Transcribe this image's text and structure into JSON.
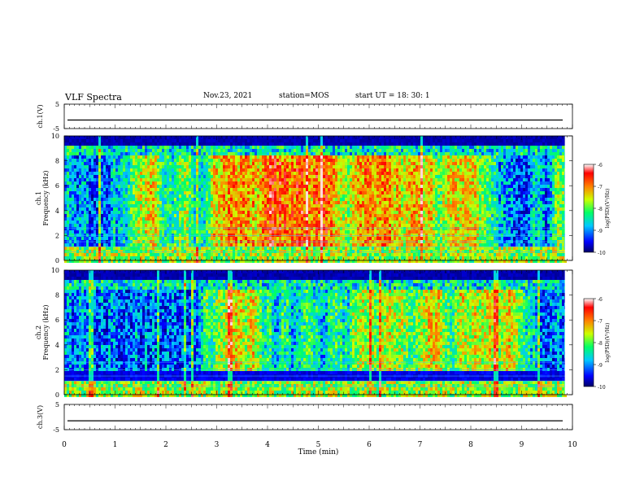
{
  "header": {
    "title": "VLF Spectra",
    "date": "Nov.23, 2021",
    "station": "station=MOS",
    "start": "start  UT  =   18: 30: 1"
  },
  "chart_data": [
    {
      "type": "line",
      "name": "ch1-waveform",
      "ylabel": "ch.1(V)",
      "ylim": [
        -5,
        5
      ],
      "yticks": [
        "5",
        "-5"
      ],
      "xlim": [
        0,
        10
      ],
      "level": -1.5
    },
    {
      "type": "heatmap",
      "name": "ch1-spectrogram",
      "ylabel": [
        "ch.1",
        "Frequency (kHz)"
      ],
      "ylim": [
        0,
        10
      ],
      "yticks": [
        "0",
        "2",
        "4",
        "6",
        "8",
        "10"
      ],
      "xlim": [
        0,
        10
      ],
      "data_end_min": 9.85,
      "colorbar": {
        "label": "log(PSD)(V²/Hz)",
        "range": [
          -10,
          -6
        ],
        "ticks": [
          "-6",
          "-7",
          "-8",
          "-9",
          "-10"
        ],
        "colormap": [
          "#000066",
          "#0000ff",
          "#00c8ff",
          "#00ff66",
          "#ccff00",
          "#ff8000",
          "#ff0000",
          "#ffffff"
        ]
      }
    },
    {
      "type": "heatmap",
      "name": "ch2-spectrogram",
      "ylabel": [
        "ch.2",
        "Frequency (kHz)"
      ],
      "ylim": [
        0,
        10
      ],
      "yticks": [
        "0",
        "2",
        "4",
        "6",
        "8",
        "10"
      ],
      "xlim": [
        0,
        10
      ],
      "data_end_min": 9.85,
      "colorbar": {
        "label": "log(PSD)(V²/Hz)",
        "range": [
          -10,
          -6
        ],
        "ticks": [
          "-6",
          "-7",
          "-8",
          "-9",
          "-10"
        ],
        "colormap": [
          "#000066",
          "#0000ff",
          "#00c8ff",
          "#00ff66",
          "#ccff00",
          "#ff8000",
          "#ff0000",
          "#ffffff"
        ]
      }
    },
    {
      "type": "line",
      "name": "ch3-waveform",
      "ylabel": "ch.3(V)",
      "ylim": [
        -5,
        5
      ],
      "yticks": [
        "5",
        "-5"
      ],
      "xlim": [
        0,
        10
      ],
      "xticks": [
        "0",
        "1",
        "2",
        "3",
        "4",
        "5",
        "6",
        "7",
        "8",
        "9",
        "10"
      ],
      "xlabel": "Time  (min)",
      "level": -1.5
    }
  ]
}
